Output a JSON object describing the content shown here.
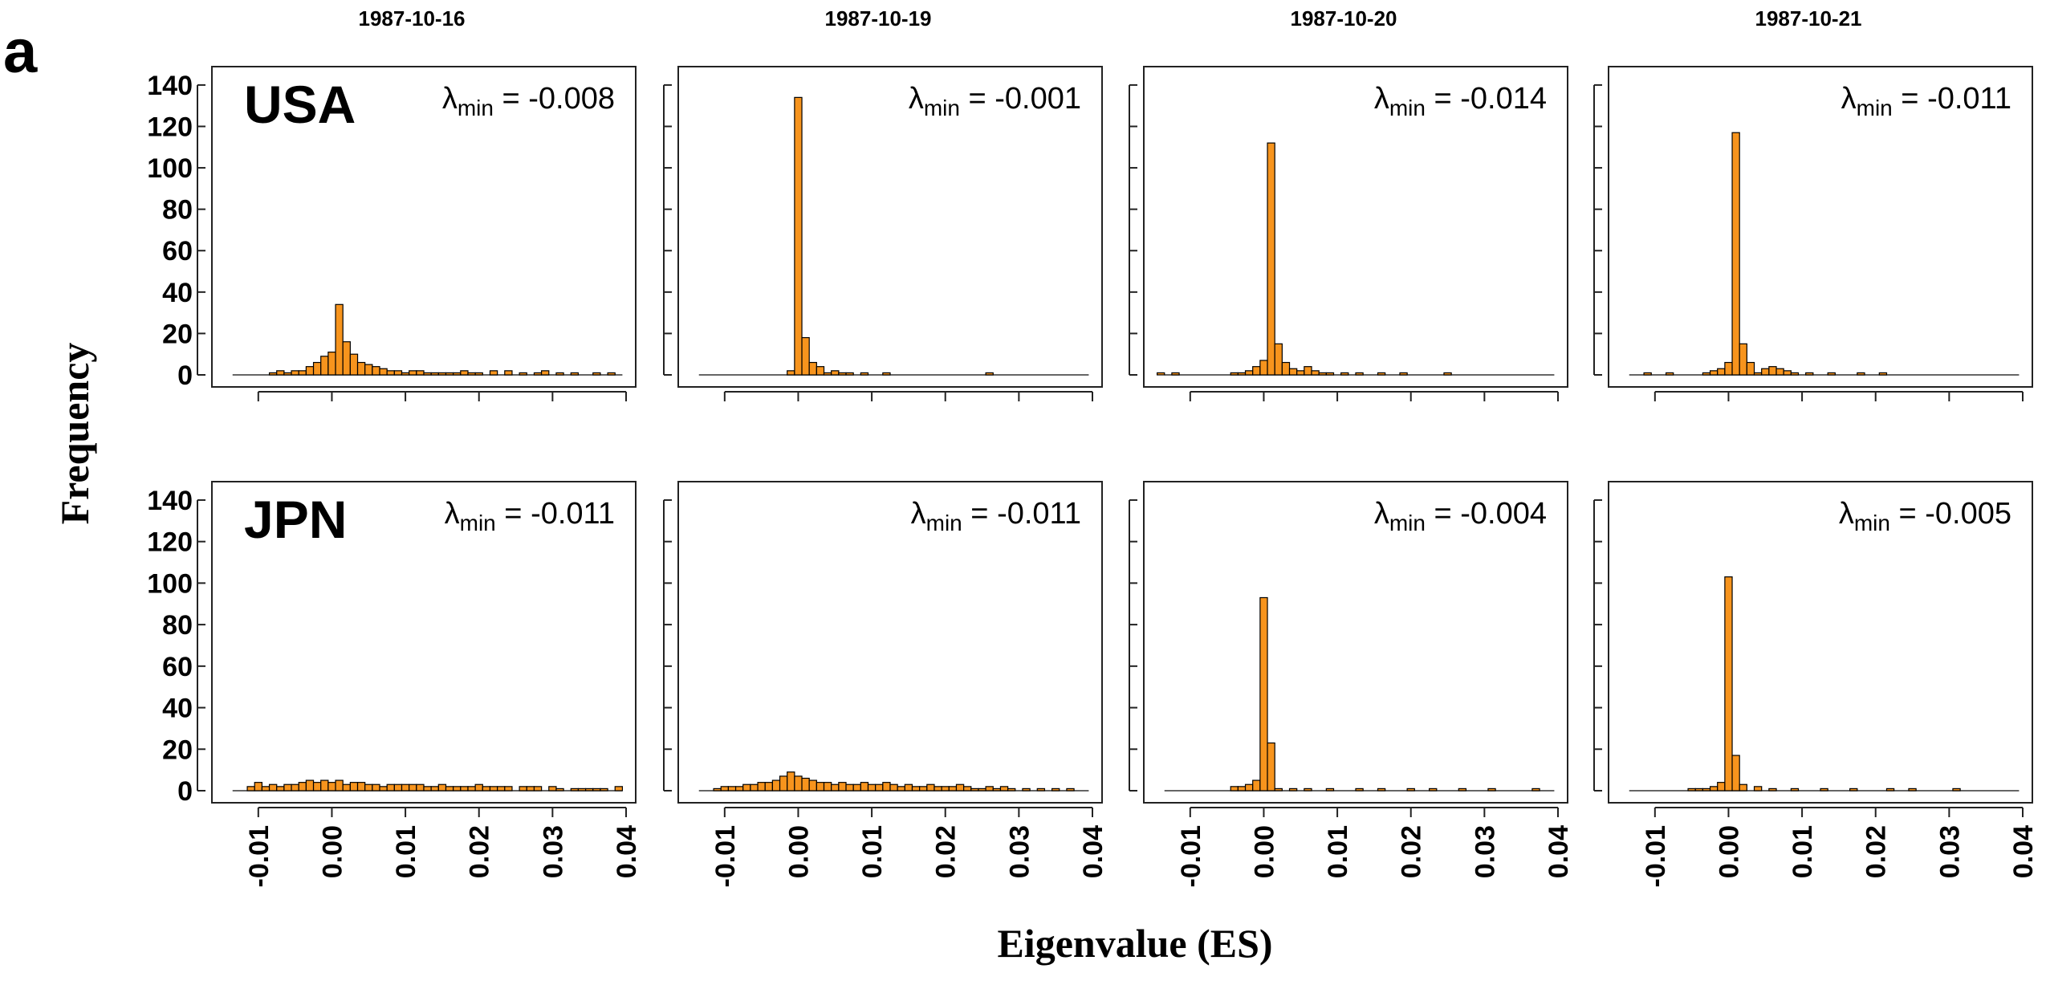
{
  "figure": {
    "panel_letter": "a",
    "ylabel": "Frequency",
    "xlabel": "Eigenvalue (ES)",
    "dates": [
      "1987-10-16",
      "1987-10-19",
      "1987-10-20",
      "1987-10-21"
    ],
    "countries": [
      "USA",
      "JPN"
    ],
    "lambda_prefix": "λ",
    "lambda_sub": "min",
    "lambda_eq": " = ",
    "y_ticks": [
      "0",
      "20",
      "40",
      "60",
      "80",
      "100",
      "120",
      "140"
    ],
    "x_ticks": [
      "-0.01",
      "0.00",
      "0.01",
      "0.02",
      "0.03",
      "0.04"
    ],
    "bar_color": "#f7941d",
    "bar_edge": "#000000"
  },
  "chart_data": [
    {
      "type": "bar",
      "row": "USA",
      "date": "1987-10-16",
      "lambda_min": "-0.008",
      "xlim": [
        -0.015,
        0.04
      ],
      "ylim": [
        0,
        145
      ],
      "bin_width": 0.001,
      "bins": [
        [
          -0.008,
          1
        ],
        [
          -0.007,
          2
        ],
        [
          -0.006,
          1
        ],
        [
          -0.005,
          2
        ],
        [
          -0.004,
          2
        ],
        [
          -0.003,
          4
        ],
        [
          -0.002,
          6
        ],
        [
          -0.001,
          9
        ],
        [
          0,
          11
        ],
        [
          0.001,
          34
        ],
        [
          0.002,
          16
        ],
        [
          0.003,
          10
        ],
        [
          0.004,
          6
        ],
        [
          0.005,
          5
        ],
        [
          0.006,
          4
        ],
        [
          0.007,
          3
        ],
        [
          0.008,
          2
        ],
        [
          0.009,
          2
        ],
        [
          0.01,
          1
        ],
        [
          0.011,
          2
        ],
        [
          0.012,
          2
        ],
        [
          0.013,
          1
        ],
        [
          0.014,
          1
        ],
        [
          0.015,
          1
        ],
        [
          0.016,
          1
        ],
        [
          0.017,
          1
        ],
        [
          0.018,
          2
        ],
        [
          0.019,
          1
        ],
        [
          0.02,
          1
        ],
        [
          0.022,
          2
        ],
        [
          0.024,
          2
        ],
        [
          0.026,
          1
        ],
        [
          0.028,
          1
        ],
        [
          0.029,
          2
        ],
        [
          0.031,
          1
        ],
        [
          0.033,
          1
        ],
        [
          0.036,
          1
        ],
        [
          0.038,
          1
        ]
      ]
    },
    {
      "type": "bar",
      "row": "USA",
      "date": "1987-10-19",
      "lambda_min": "-0.001",
      "xlim": [
        -0.015,
        0.04
      ],
      "ylim": [
        0,
        145
      ],
      "bin_width": 0.001,
      "bins": [
        [
          -0.001,
          2
        ],
        [
          0,
          134
        ],
        [
          0.001,
          18
        ],
        [
          0.002,
          6
        ],
        [
          0.003,
          4
        ],
        [
          0.004,
          1
        ],
        [
          0.005,
          2
        ],
        [
          0.006,
          1
        ],
        [
          0.007,
          1
        ],
        [
          0.009,
          1
        ],
        [
          0.012,
          1
        ],
        [
          0.026,
          1
        ]
      ]
    },
    {
      "type": "bar",
      "row": "USA",
      "date": "1987-10-20",
      "lambda_min": "-0.014",
      "xlim": [
        -0.015,
        0.04
      ],
      "ylim": [
        0,
        145
      ],
      "bin_width": 0.001,
      "bins": [
        [
          -0.014,
          1
        ],
        [
          -0.012,
          1
        ],
        [
          -0.004,
          1
        ],
        [
          -0.003,
          1
        ],
        [
          -0.002,
          2
        ],
        [
          -0.001,
          4
        ],
        [
          0,
          7
        ],
        [
          0.001,
          112
        ],
        [
          0.002,
          15
        ],
        [
          0.003,
          6
        ],
        [
          0.004,
          3
        ],
        [
          0.005,
          2
        ],
        [
          0.006,
          4
        ],
        [
          0.007,
          2
        ],
        [
          0.008,
          1
        ],
        [
          0.009,
          1
        ],
        [
          0.011,
          1
        ],
        [
          0.013,
          1
        ],
        [
          0.016,
          1
        ],
        [
          0.019,
          1
        ],
        [
          0.025,
          1
        ]
      ]
    },
    {
      "type": "bar",
      "row": "USA",
      "date": "1987-10-21",
      "lambda_min": "-0.011",
      "xlim": [
        -0.015,
        0.04
      ],
      "ylim": [
        0,
        145
      ],
      "bin_width": 0.001,
      "bins": [
        [
          -0.011,
          1
        ],
        [
          -0.008,
          1
        ],
        [
          -0.003,
          1
        ],
        [
          -0.002,
          2
        ],
        [
          -0.001,
          3
        ],
        [
          0,
          6
        ],
        [
          0.001,
          117
        ],
        [
          0.002,
          15
        ],
        [
          0.003,
          6
        ],
        [
          0.004,
          1
        ],
        [
          0.005,
          3
        ],
        [
          0.006,
          4
        ],
        [
          0.007,
          3
        ],
        [
          0.008,
          2
        ],
        [
          0.009,
          1
        ],
        [
          0.011,
          1
        ],
        [
          0.014,
          1
        ],
        [
          0.018,
          1
        ],
        [
          0.021,
          1
        ]
      ]
    },
    {
      "type": "bar",
      "row": "JPN",
      "date": "1987-10-16",
      "lambda_min": "-0.011",
      "xlim": [
        -0.015,
        0.04
      ],
      "ylim": [
        0,
        145
      ],
      "bin_width": 0.001,
      "bins": [
        [
          -0.011,
          2
        ],
        [
          -0.01,
          4
        ],
        [
          -0.009,
          2
        ],
        [
          -0.008,
          3
        ],
        [
          -0.007,
          2
        ],
        [
          -0.006,
          3
        ],
        [
          -0.005,
          3
        ],
        [
          -0.004,
          4
        ],
        [
          -0.003,
          5
        ],
        [
          -0.002,
          4
        ],
        [
          -0.001,
          5
        ],
        [
          0,
          4
        ],
        [
          0.001,
          5
        ],
        [
          0.002,
          3
        ],
        [
          0.003,
          4
        ],
        [
          0.004,
          4
        ],
        [
          0.005,
          3
        ],
        [
          0.006,
          3
        ],
        [
          0.007,
          2
        ],
        [
          0.008,
          3
        ],
        [
          0.009,
          3
        ],
        [
          0.01,
          3
        ],
        [
          0.011,
          3
        ],
        [
          0.012,
          3
        ],
        [
          0.013,
          2
        ],
        [
          0.014,
          2
        ],
        [
          0.015,
          3
        ],
        [
          0.016,
          2
        ],
        [
          0.017,
          2
        ],
        [
          0.018,
          2
        ],
        [
          0.019,
          2
        ],
        [
          0.02,
          3
        ],
        [
          0.021,
          2
        ],
        [
          0.022,
          2
        ],
        [
          0.023,
          2
        ],
        [
          0.024,
          2
        ],
        [
          0.026,
          2
        ],
        [
          0.027,
          2
        ],
        [
          0.028,
          2
        ],
        [
          0.03,
          2
        ],
        [
          0.031,
          1
        ],
        [
          0.033,
          1
        ],
        [
          0.034,
          1
        ],
        [
          0.035,
          1
        ],
        [
          0.036,
          1
        ],
        [
          0.037,
          1
        ],
        [
          0.039,
          2
        ]
      ]
    },
    {
      "type": "bar",
      "row": "JPN",
      "date": "1987-10-19",
      "lambda_min": "-0.011",
      "xlim": [
        -0.015,
        0.04
      ],
      "ylim": [
        0,
        145
      ],
      "bin_width": 0.001,
      "bins": [
        [
          -0.011,
          1
        ],
        [
          -0.01,
          2
        ],
        [
          -0.009,
          2
        ],
        [
          -0.008,
          2
        ],
        [
          -0.007,
          3
        ],
        [
          -0.006,
          3
        ],
        [
          -0.005,
          4
        ],
        [
          -0.004,
          4
        ],
        [
          -0.003,
          5
        ],
        [
          -0.002,
          7
        ],
        [
          -0.001,
          9
        ],
        [
          0,
          7
        ],
        [
          0.001,
          6
        ],
        [
          0.002,
          5
        ],
        [
          0.003,
          4
        ],
        [
          0.004,
          4
        ],
        [
          0.005,
          3
        ],
        [
          0.006,
          4
        ],
        [
          0.007,
          3
        ],
        [
          0.008,
          3
        ],
        [
          0.009,
          4
        ],
        [
          0.01,
          3
        ],
        [
          0.011,
          3
        ],
        [
          0.012,
          4
        ],
        [
          0.013,
          3
        ],
        [
          0.014,
          2
        ],
        [
          0.015,
          3
        ],
        [
          0.016,
          2
        ],
        [
          0.017,
          2
        ],
        [
          0.018,
          3
        ],
        [
          0.019,
          2
        ],
        [
          0.02,
          2
        ],
        [
          0.021,
          2
        ],
        [
          0.022,
          3
        ],
        [
          0.023,
          2
        ],
        [
          0.024,
          1
        ],
        [
          0.025,
          1
        ],
        [
          0.026,
          2
        ],
        [
          0.027,
          1
        ],
        [
          0.028,
          2
        ],
        [
          0.029,
          1
        ],
        [
          0.031,
          1
        ],
        [
          0.033,
          1
        ],
        [
          0.035,
          1
        ],
        [
          0.037,
          1
        ]
      ]
    },
    {
      "type": "bar",
      "row": "JPN",
      "date": "1987-10-20",
      "lambda_min": "-0.004",
      "xlim": [
        -0.015,
        0.04
      ],
      "ylim": [
        0,
        145
      ],
      "bin_width": 0.001,
      "bins": [
        [
          -0.004,
          2
        ],
        [
          -0.003,
          2
        ],
        [
          -0.002,
          3
        ],
        [
          -0.001,
          5
        ],
        [
          0,
          93
        ],
        [
          0.001,
          23
        ],
        [
          0.002,
          1
        ],
        [
          0.004,
          1
        ],
        [
          0.006,
          1
        ],
        [
          0.009,
          1
        ],
        [
          0.013,
          1
        ],
        [
          0.016,
          1
        ],
        [
          0.02,
          1
        ],
        [
          0.023,
          1
        ],
        [
          0.027,
          1
        ],
        [
          0.031,
          1
        ],
        [
          0.037,
          1
        ]
      ]
    },
    {
      "type": "bar",
      "row": "JPN",
      "date": "1987-10-21",
      "lambda_min": "-0.005",
      "xlim": [
        -0.015,
        0.04
      ],
      "ylim": [
        0,
        145
      ],
      "bin_width": 0.001,
      "bins": [
        [
          -0.005,
          1
        ],
        [
          -0.004,
          1
        ],
        [
          -0.003,
          1
        ],
        [
          -0.002,
          2
        ],
        [
          -0.001,
          4
        ],
        [
          0,
          103
        ],
        [
          0.001,
          17
        ],
        [
          0.002,
          3
        ],
        [
          0.004,
          2
        ],
        [
          0.006,
          1
        ],
        [
          0.009,
          1
        ],
        [
          0.013,
          1
        ],
        [
          0.017,
          1
        ],
        [
          0.022,
          1
        ],
        [
          0.025,
          1
        ],
        [
          0.031,
          1
        ]
      ]
    }
  ]
}
